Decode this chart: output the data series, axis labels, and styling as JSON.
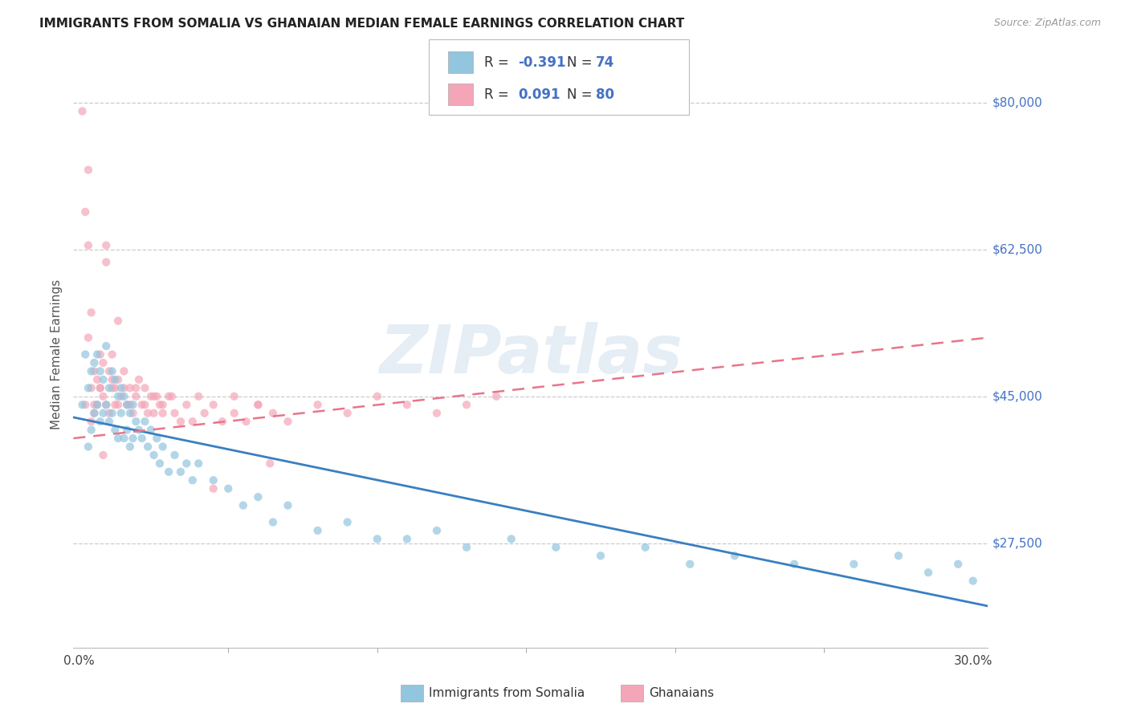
{
  "title": "IMMIGRANTS FROM SOMALIA VS GHANAIAN MEDIAN FEMALE EARNINGS CORRELATION CHART",
  "source": "Source: ZipAtlas.com",
  "ylabel": "Median Female Earnings",
  "ylabel_vals": [
    27500,
    45000,
    62500,
    80000
  ],
  "ylabel_ticks": [
    "$27,500",
    "$45,000",
    "$62,500",
    "$80,000"
  ],
  "ymin": 15000,
  "ymax": 85000,
  "xmin": -0.002,
  "xmax": 0.305,
  "xtick_minor": [
    0.0,
    0.05,
    0.1,
    0.15,
    0.2,
    0.25,
    0.3
  ],
  "watermark": "ZIPatlas",
  "legend_blue_r": "-0.391",
  "legend_blue_n": "74",
  "legend_pink_r": "0.091",
  "legend_pink_n": "80",
  "blue_color": "#92c5de",
  "pink_color": "#f4a6b8",
  "blue_line_color": "#3a7fc1",
  "pink_line_color": "#e8758a",
  "scatter_alpha": 0.7,
  "scatter_size": 55,
  "blue_x": [
    0.001,
    0.002,
    0.003,
    0.003,
    0.004,
    0.004,
    0.005,
    0.005,
    0.006,
    0.006,
    0.007,
    0.007,
    0.008,
    0.008,
    0.009,
    0.009,
    0.01,
    0.01,
    0.011,
    0.011,
    0.012,
    0.012,
    0.013,
    0.013,
    0.014,
    0.014,
    0.015,
    0.015,
    0.016,
    0.016,
    0.017,
    0.017,
    0.018,
    0.018,
    0.019,
    0.02,
    0.021,
    0.022,
    0.023,
    0.024,
    0.025,
    0.026,
    0.027,
    0.028,
    0.03,
    0.032,
    0.034,
    0.036,
    0.038,
    0.04,
    0.045,
    0.05,
    0.055,
    0.06,
    0.065,
    0.07,
    0.08,
    0.09,
    0.1,
    0.11,
    0.12,
    0.13,
    0.145,
    0.16,
    0.175,
    0.19,
    0.205,
    0.22,
    0.24,
    0.26,
    0.275,
    0.285,
    0.295,
    0.3
  ],
  "blue_y": [
    44000,
    50000,
    46000,
    39000,
    48000,
    41000,
    49000,
    43000,
    50000,
    44000,
    48000,
    42000,
    47000,
    43000,
    51000,
    44000,
    46000,
    42000,
    48000,
    43000,
    47000,
    41000,
    45000,
    40000,
    46000,
    43000,
    45000,
    40000,
    44000,
    41000,
    43000,
    39000,
    44000,
    40000,
    42000,
    41000,
    40000,
    42000,
    39000,
    41000,
    38000,
    40000,
    37000,
    39000,
    36000,
    38000,
    36000,
    37000,
    35000,
    37000,
    35000,
    34000,
    32000,
    33000,
    30000,
    32000,
    29000,
    30000,
    28000,
    28000,
    29000,
    27000,
    28000,
    27000,
    26000,
    27000,
    25000,
    26000,
    25000,
    25000,
    26000,
    24000,
    25000,
    23000
  ],
  "pink_x": [
    0.001,
    0.002,
    0.003,
    0.003,
    0.004,
    0.004,
    0.005,
    0.005,
    0.006,
    0.006,
    0.007,
    0.007,
    0.008,
    0.008,
    0.009,
    0.009,
    0.01,
    0.01,
    0.011,
    0.011,
    0.012,
    0.012,
    0.013,
    0.013,
    0.014,
    0.015,
    0.016,
    0.017,
    0.018,
    0.019,
    0.02,
    0.021,
    0.022,
    0.023,
    0.024,
    0.025,
    0.026,
    0.027,
    0.028,
    0.03,
    0.032,
    0.034,
    0.036,
    0.038,
    0.04,
    0.042,
    0.045,
    0.048,
    0.052,
    0.056,
    0.06,
    0.065,
    0.07,
    0.08,
    0.09,
    0.1,
    0.11,
    0.12,
    0.13,
    0.14,
    0.003,
    0.002,
    0.004,
    0.005,
    0.007,
    0.009,
    0.011,
    0.013,
    0.015,
    0.017,
    0.019,
    0.022,
    0.025,
    0.028,
    0.031,
    0.052,
    0.06,
    0.064,
    0.045,
    0.008
  ],
  "pink_y": [
    79000,
    67000,
    52000,
    63000,
    46000,
    55000,
    48000,
    43000,
    47000,
    44000,
    50000,
    46000,
    49000,
    45000,
    63000,
    61000,
    48000,
    43000,
    50000,
    47000,
    46000,
    44000,
    54000,
    47000,
    45000,
    48000,
    44000,
    46000,
    43000,
    45000,
    47000,
    44000,
    46000,
    43000,
    45000,
    43000,
    45000,
    44000,
    43000,
    45000,
    43000,
    42000,
    44000,
    42000,
    45000,
    43000,
    44000,
    42000,
    43000,
    42000,
    44000,
    43000,
    42000,
    44000,
    43000,
    45000,
    44000,
    43000,
    44000,
    45000,
    72000,
    44000,
    42000,
    44000,
    46000,
    44000,
    46000,
    44000,
    46000,
    44000,
    46000,
    44000,
    45000,
    44000,
    45000,
    45000,
    44000,
    37000,
    34000,
    38000
  ]
}
